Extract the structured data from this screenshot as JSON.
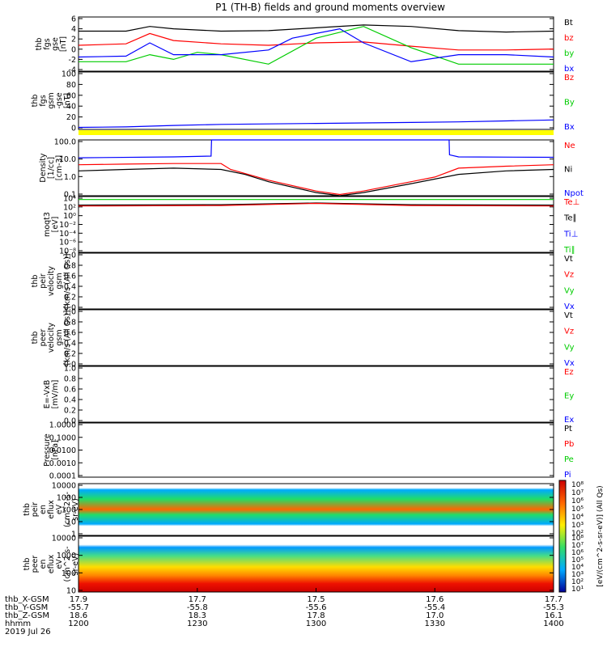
{
  "title": "P1 (TH-B) fields and ground moments overview",
  "colors": {
    "black": "#000000",
    "red": "#ff0000",
    "green": "#00cc00",
    "blue": "#0000ff",
    "yellow": "#ffff00"
  },
  "chart_data": [
    {
      "type": "line",
      "panel": "fgs_gse",
      "ylabel": [
        "thb",
        "fgs",
        "gse",
        "[nT]"
      ],
      "yticks": [
        "6",
        "4",
        "2",
        "0",
        "-2",
        "-4"
      ],
      "ylim": [
        -5,
        6.5
      ],
      "legend": [
        {
          "label": "Bt",
          "color": "#000000"
        },
        {
          "label": "bz",
          "color": "#ff0000"
        },
        {
          "label": "by",
          "color": "#00cc00"
        },
        {
          "label": "bx",
          "color": "#0000ff"
        }
      ],
      "series": [
        {
          "name": "Bt",
          "color": "#000000",
          "x": [
            0,
            0.1,
            0.15,
            0.2,
            0.3,
            0.4,
            0.5,
            0.6,
            0.7,
            0.8,
            0.9,
            1.0
          ],
          "y": [
            3.5,
            3.5,
            4.5,
            4.0,
            3.5,
            3.6,
            4.2,
            4.8,
            4.5,
            3.6,
            3.3,
            3.5
          ]
        },
        {
          "name": "bz",
          "color": "#ff0000",
          "x": [
            0,
            0.1,
            0.15,
            0.2,
            0.3,
            0.4,
            0.5,
            0.6,
            0.7,
            0.8,
            0.9,
            1.0
          ],
          "y": [
            0.5,
            0.8,
            3.0,
            1.5,
            0.8,
            0.5,
            1.0,
            1.2,
            0.3,
            -0.5,
            -0.5,
            -0.3
          ]
        },
        {
          "name": "by",
          "color": "#00cc00",
          "x": [
            0,
            0.1,
            0.15,
            0.2,
            0.25,
            0.3,
            0.4,
            0.5,
            0.6,
            0.7,
            0.8,
            0.9,
            1.0
          ],
          "y": [
            -3.0,
            -3.0,
            -1.5,
            -2.5,
            -1.0,
            -1.5,
            -3.5,
            2.0,
            4.5,
            0.0,
            -3.5,
            -3.5,
            -3.5
          ]
        },
        {
          "name": "bx",
          "color": "#0000ff",
          "x": [
            0,
            0.1,
            0.15,
            0.2,
            0.3,
            0.4,
            0.45,
            0.55,
            0.6,
            0.7,
            0.8,
            0.9,
            1.0
          ],
          "y": [
            -2.0,
            -1.8,
            1.0,
            -1.5,
            -1.5,
            -0.5,
            2.0,
            4.0,
            1.0,
            -3.0,
            -1.5,
            -1.5,
            -2.0
          ]
        }
      ]
    },
    {
      "type": "line",
      "panel": "fgs_gsm_gse",
      "ylabel": [
        "thb",
        "fgs",
        "gsm",
        "-gse",
        "[nT]"
      ],
      "yticks": [
        "100",
        "80",
        "60",
        "40",
        "20",
        "0"
      ],
      "ylim": [
        -10,
        105
      ],
      "legend": [
        {
          "label": "Bz",
          "color": "#ff0000"
        },
        {
          "label": "By",
          "color": "#00cc00"
        },
        {
          "label": "Bx",
          "color": "#0000ff"
        }
      ],
      "series": [
        {
          "name": "Bx",
          "color": "#0000ff",
          "x": [
            0,
            0.1,
            0.2,
            0.3,
            0.4,
            0.5,
            0.6,
            0.7,
            0.8,
            0.9,
            1.0
          ],
          "y": [
            -6,
            -5,
            -2,
            0,
            1,
            2,
            3,
            4,
            5,
            7,
            9
          ]
        }
      ]
    },
    {
      "type": "line",
      "panel": "density",
      "ylabel": [
        "Density",
        "[1/cc]",
        "[cm-3]"
      ],
      "yticks": [
        "100.0",
        "10.0",
        "1.0",
        "0.1"
      ],
      "ylim": [
        0.05,
        200
      ],
      "log": true,
      "legend": [
        {
          "label": "Ne",
          "color": "#ff0000"
        },
        {
          "label": "Ni",
          "color": "#000000"
        },
        {
          "label": "Npot",
          "color": "#0000ff"
        }
      ],
      "series": [
        {
          "name": "Npot",
          "color": "#0000ff",
          "x": [
            0,
            0.2,
            0.279,
            0.28,
            0.3,
            0.78,
            0.781,
            0.8,
            1.0
          ],
          "y": [
            14,
            16,
            18,
            200,
            200,
            200,
            22,
            16,
            15
          ]
        },
        {
          "name": "Ne",
          "color": "#ff0000",
          "x": [
            0,
            0.1,
            0.2,
            0.3,
            0.32,
            0.4,
            0.5,
            0.55,
            0.6,
            0.7,
            0.75,
            0.8,
            0.9,
            1.0
          ],
          "y": [
            5,
            5.5,
            6,
            6,
            2.5,
            0.5,
            0.1,
            0.06,
            0.1,
            0.4,
            0.8,
            3,
            4,
            5
          ]
        },
        {
          "name": "Ni",
          "color": "#000000",
          "x": [
            0,
            0.1,
            0.2,
            0.3,
            0.35,
            0.4,
            0.5,
            0.55,
            0.6,
            0.7,
            0.8,
            0.9,
            1.0
          ],
          "y": [
            2,
            2.5,
            3,
            2.5,
            1.2,
            0.4,
            0.08,
            0.045,
            0.08,
            0.3,
            1.2,
            2,
            2.5
          ]
        }
      ]
    },
    {
      "type": "line",
      "panel": "temperature",
      "ylabel": [
        "moqt3",
        "[eV]"
      ],
      "yticks": [
        "10⁴",
        "10²",
        "10⁰",
        "10⁻²",
        "10⁻⁴",
        "10⁻⁶",
        "10⁻⁸"
      ],
      "legend": [
        {
          "label": "Te⊥",
          "color": "#ff0000"
        },
        {
          "label": "Te∥",
          "color": "#000000"
        },
        {
          "label": "Ti⊥",
          "color": "#0000ff"
        },
        {
          "label": "Ti∥",
          "color": "#00cc00"
        }
      ],
      "series": [
        {
          "name": "Ti",
          "color": "#00cc00",
          "x": [
            0,
            1
          ],
          "y": [
            3.3,
            3.3
          ]
        },
        {
          "name": "Te∥",
          "color": "#000000",
          "x": [
            0,
            0.3,
            0.5,
            0.7,
            1
          ],
          "y": [
            2.0,
            2.1,
            2.5,
            2.1,
            2.0
          ]
        },
        {
          "name": "Te⊥",
          "color": "#ff0000",
          "x": [
            0,
            0.3,
            0.5,
            0.7,
            1
          ],
          "y": [
            1.8,
            1.9,
            2.4,
            1.9,
            1.8
          ]
        }
      ]
    },
    {
      "type": "line",
      "panel": "peir_velocity",
      "ylabel": [
        "thb",
        "peir",
        "velocity",
        "gsm",
        "[km/s (All Qs)]"
      ],
      "yticks": [
        "1.0",
        "0.8",
        "0.6",
        "0.4",
        "0.2",
        "0.0"
      ],
      "legend": [
        {
          "label": "Vt",
          "color": "#000000"
        },
        {
          "label": "Vz",
          "color": "#ff0000"
        },
        {
          "label": "Vy",
          "color": "#00cc00"
        },
        {
          "label": "Vx",
          "color": "#0000ff"
        }
      ]
    },
    {
      "type": "line",
      "panel": "peer_velocity",
      "ylabel": [
        "thb",
        "peer",
        "velocity",
        "gsm",
        "[km/s (All Qs)]"
      ],
      "yticks": [
        "1.0",
        "0.8",
        "0.6",
        "0.4",
        "0.2",
        "0.0"
      ],
      "legend": [
        {
          "label": "Vt",
          "color": "#000000"
        },
        {
          "label": "Vz",
          "color": "#ff0000"
        },
        {
          "label": "Vy",
          "color": "#00cc00"
        },
        {
          "label": "Vx",
          "color": "#0000ff"
        }
      ]
    },
    {
      "type": "line",
      "panel": "e_field",
      "ylabel": [
        "E=-VxB",
        "[mV/m]"
      ],
      "yticks": [
        "1.0",
        "0.8",
        "0.6",
        "0.4",
        "0.2",
        "0.0"
      ],
      "legend": [
        {
          "label": "Ez",
          "color": "#ff0000"
        },
        {
          "label": "Ey",
          "color": "#00cc00"
        },
        {
          "label": "Ex",
          "color": "#0000ff"
        }
      ]
    },
    {
      "type": "line",
      "panel": "pressure",
      "ylabel": [
        "Pressure",
        "[nPa]"
      ],
      "yticks": [
        "1.0000",
        "0.1000",
        "0.0100",
        "0.0010",
        "0.0001"
      ],
      "log": true,
      "legend": [
        {
          "label": "Pt",
          "color": "#000000"
        },
        {
          "label": "Pb",
          "color": "#ff0000"
        },
        {
          "label": "Pe",
          "color": "#00cc00"
        },
        {
          "label": "Pi",
          "color": "#0000ff"
        }
      ],
      "series": [
        {
          "name": "Pt",
          "color": "#000000",
          "x": [
            0,
            0.1,
            0.2,
            0.3,
            0.4,
            0.5,
            0.55,
            0.6,
            0.7,
            0.8,
            0.9,
            1.0
          ],
          "y": [
            0.15,
            0.17,
            0.18,
            0.12,
            0.04,
            0.012,
            0.009,
            0.012,
            0.05,
            0.12,
            0.15,
            0.16
          ]
        },
        {
          "name": "Pi",
          "color": "#0000ff",
          "x": [
            0,
            0.1,
            0.2,
            0.3,
            0.4,
            0.5,
            0.55,
            0.6,
            0.7,
            0.8,
            0.9,
            1.0
          ],
          "y": [
            0.13,
            0.15,
            0.16,
            0.1,
            0.03,
            0.008,
            0.004,
            0.008,
            0.04,
            0.1,
            0.13,
            0.14
          ]
        },
        {
          "name": "Pb",
          "color": "#ff0000",
          "x": [
            0,
            0.15,
            0.2,
            0.4,
            0.5,
            0.6,
            0.7,
            0.8,
            1.0
          ],
          "y": [
            0.006,
            0.005,
            0.007,
            0.008,
            0.009,
            0.01,
            0.008,
            0.006,
            0.006
          ]
        },
        {
          "name": "Pe",
          "color": "#00cc00",
          "x": [
            0,
            0.2,
            0.3,
            0.32,
            0.5,
            0.55,
            0.6,
            0.75,
            0.78,
            0.9,
            1.0
          ],
          "y": [
            0.006,
            0.008,
            0.008,
            0.004,
            0.0006,
            0.0004,
            0.0006,
            0.002,
            0.006,
            0.006,
            0.005
          ]
        }
      ]
    },
    {
      "type": "heatmap",
      "panel": "peir_spectrogram",
      "ylabel": [
        "thb",
        "peir",
        "en",
        "eflux",
        "eV",
        "(cm^2-s-",
        "sr-eV)"
      ],
      "yticks": [
        "10000",
        "1000",
        "100",
        "10",
        "1"
      ]
    },
    {
      "type": "heatmap",
      "panel": "peer_spectrogram",
      "ylabel": [
        "thb",
        "peer",
        "en",
        "eflux",
        "eV",
        "(cm^2-s-",
        "sr-eV)"
      ],
      "yticks": [
        "10000",
        "1000",
        "100",
        "10"
      ]
    }
  ],
  "colorbar": {
    "label": "[eV/(cm^2-s-sr-eV)] (All Qs)",
    "ticks_top": [
      "10⁸",
      "10⁷",
      "10⁶",
      "10⁵",
      "10⁴",
      "10³",
      "10²"
    ],
    "ticks_bottom": [
      "10⁸",
      "10⁷",
      "10⁶",
      "10⁵",
      "10⁴",
      "10³",
      "10²",
      "10¹"
    ]
  },
  "xaxis": {
    "rows": [
      {
        "label": "thb_X-GSM",
        "values": [
          "17.9",
          "17.7",
          "17.5",
          "17.6",
          "17.7"
        ]
      },
      {
        "label": "thb_Y-GSM",
        "values": [
          "-55.7",
          "-55.8",
          "-55.6",
          "-55.4",
          "-55.3"
        ]
      },
      {
        "label": "thb_Z-GSM",
        "values": [
          "18.6",
          "18.3",
          "17.8",
          "17.0",
          "16.1"
        ]
      },
      {
        "label": "hhmm",
        "values": [
          "1200",
          "1230",
          "1300",
          "1330",
          "1400"
        ]
      }
    ],
    "date": "2019 Jul 26"
  }
}
